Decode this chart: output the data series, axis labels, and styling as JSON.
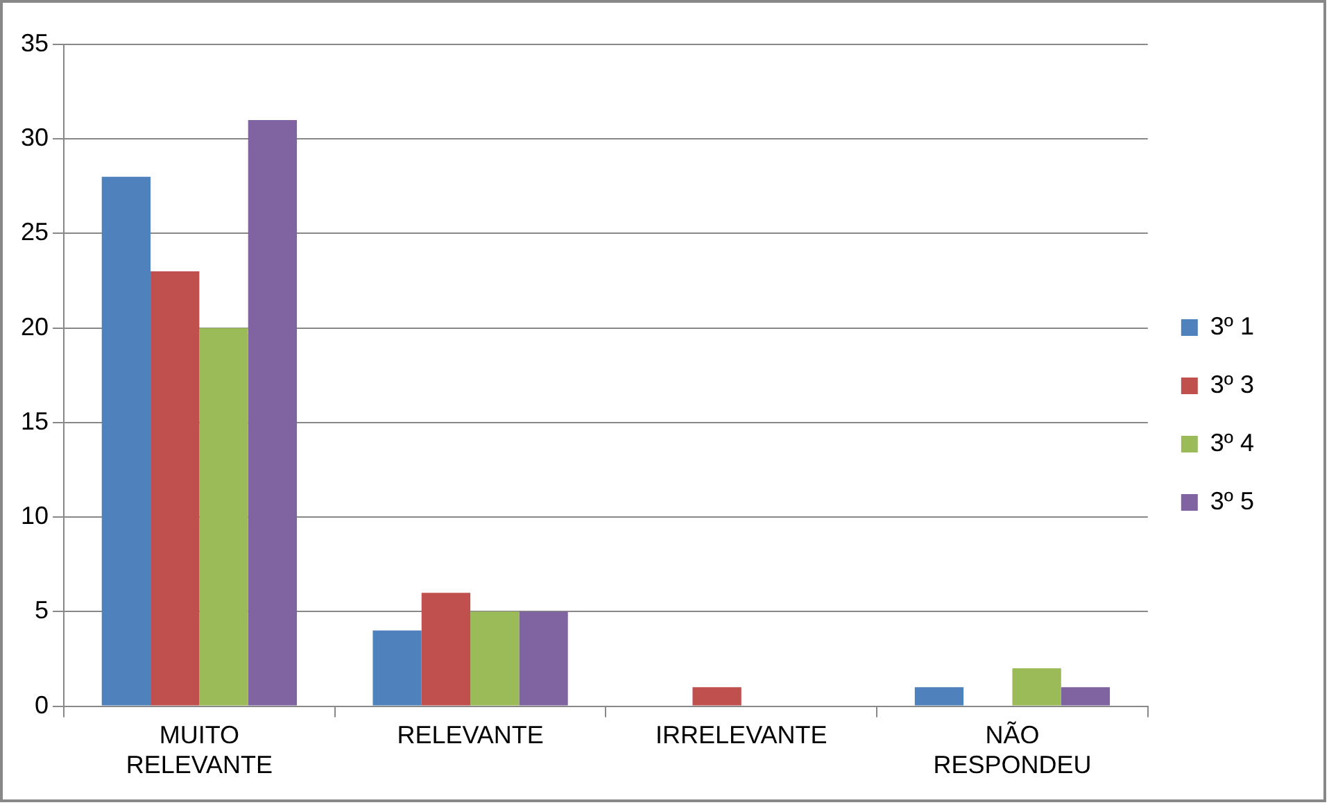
{
  "chart_data": {
    "type": "bar",
    "categories": [
      "MUITO RELEVANTE",
      "RELEVANTE",
      "IRRELEVANTE",
      "NÃO RESPONDEU"
    ],
    "series": [
      {
        "name": "3º 1",
        "color": "#4f81bd",
        "values": [
          28,
          4,
          0,
          1
        ]
      },
      {
        "name": "3º 3",
        "color": "#c0504d",
        "values": [
          23,
          6,
          1,
          0
        ]
      },
      {
        "name": "3º 4",
        "color": "#9bbb59",
        "values": [
          20,
          5,
          0,
          2
        ]
      },
      {
        "name": "3º 5",
        "color": "#8064a2",
        "values": [
          31,
          5,
          0,
          1
        ]
      }
    ],
    "ylim": [
      0,
      35
    ],
    "yticks": [
      0,
      5,
      10,
      15,
      20,
      25,
      30,
      35
    ],
    "grid": "y",
    "legend": "right"
  }
}
